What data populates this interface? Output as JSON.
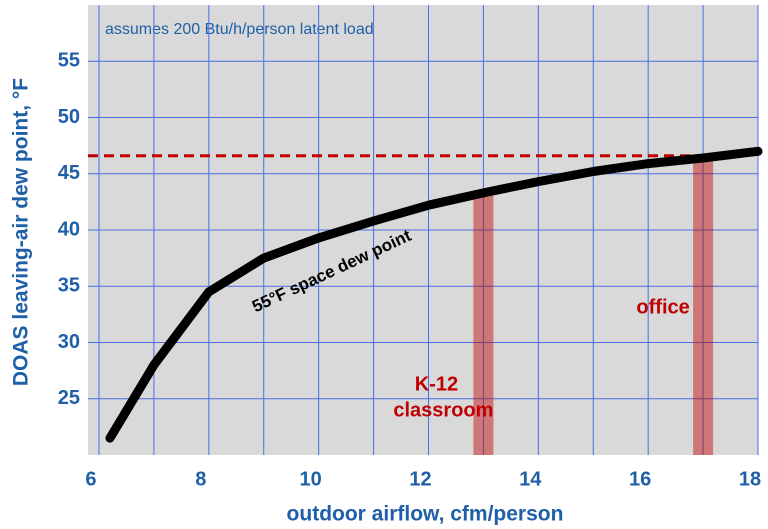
{
  "chart_data": {
    "type": "line",
    "xlabel": "outdoor airflow, cfm/person",
    "ylabel": "DOAS leaving-air dew point, °F",
    "x": [
      6.2,
      7,
      8,
      9,
      10,
      11,
      12,
      13,
      14,
      15,
      16,
      17,
      18
    ],
    "series": [
      {
        "name": "55°F space dew point",
        "color": "#000000",
        "values": [
          21.5,
          28,
          34.5,
          37.5,
          39.3,
          40.8,
          42.2,
          43.3,
          44.3,
          45.2,
          45.9,
          46.4,
          47
        ]
      }
    ],
    "xlim": [
      5.8,
      18
    ],
    "ylim": [
      20,
      60
    ],
    "xticks": [
      6,
      8,
      10,
      12,
      14,
      16,
      18
    ],
    "xminorticks": [
      7,
      9,
      11,
      13,
      15,
      17
    ],
    "yticks": [
      25,
      30,
      35,
      40,
      45,
      50,
      55
    ],
    "grid": true,
    "reference_line": {
      "value": 46.6,
      "color": "#c00000"
    },
    "highlights": [
      {
        "x": 13,
        "top": 43.3,
        "lines": [
          "K-12",
          "classroom"
        ],
        "color": "#c00000"
      },
      {
        "x": 17,
        "top": 46.4,
        "lines": [
          "office"
        ],
        "color": "#c00000"
      }
    ],
    "annotation": "assumes 200 Btu/h/person latent load"
  }
}
